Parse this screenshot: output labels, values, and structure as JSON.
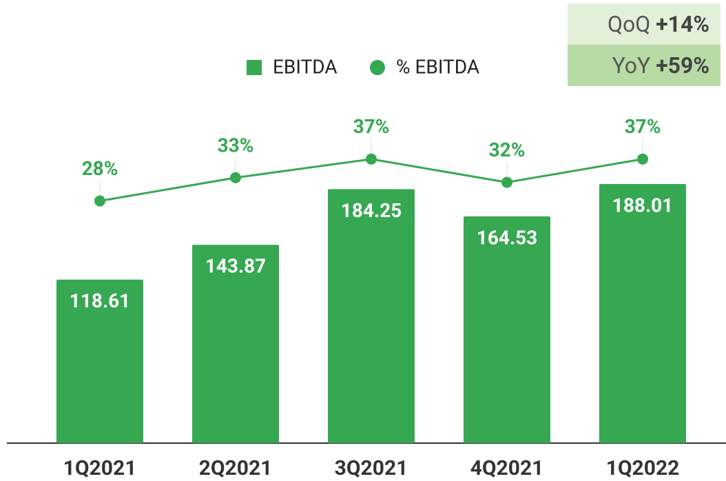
{
  "chart_data": {
    "type": "bar",
    "categories": [
      "1Q2021",
      "2Q2021",
      "3Q2021",
      "4Q2021",
      "1Q2022"
    ],
    "series": [
      {
        "name": "EBITDA",
        "type": "bar",
        "color": "#36a852",
        "values": [
          118.61,
          143.87,
          184.25,
          164.53,
          188.01
        ]
      },
      {
        "name": "% EBITDA",
        "type": "line",
        "axis": "y2",
        "color": "#36a852",
        "values": [
          28,
          33,
          37,
          32,
          37
        ],
        "value_labels": [
          "28%",
          "33%",
          "37%",
          "32%",
          "37%"
        ]
      }
    ],
    "ylim": [
      0,
      250
    ],
    "y2lim": [
      -24,
      50
    ],
    "legend": "top",
    "annotations": [
      {
        "label": "QoQ",
        "value": "+14%",
        "color": "#e2f0da"
      },
      {
        "label": "YoY",
        "value": "+59%",
        "color": "#b8dba6"
      }
    ]
  }
}
